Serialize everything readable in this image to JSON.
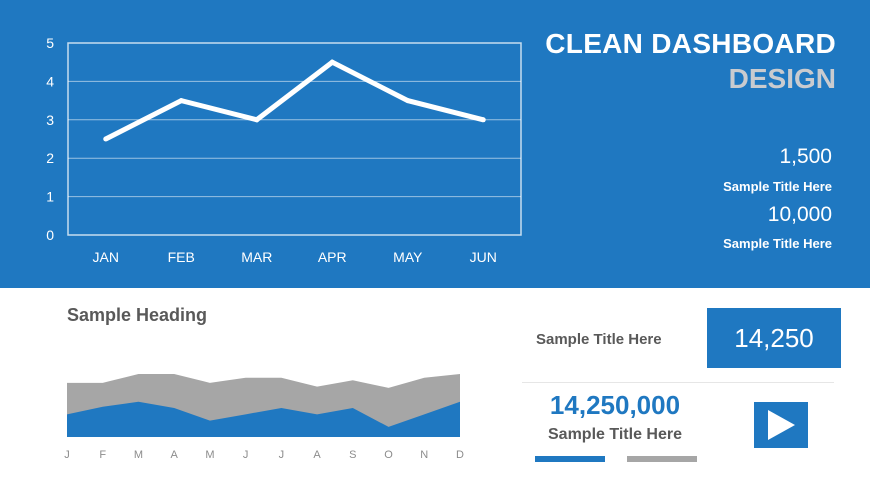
{
  "colors": {
    "accent": "#1f78c1",
    "gray": "#a6a6a6",
    "white": "#ffffff",
    "text_dark": "#595959",
    "title_gray": "#c9cbcf"
  },
  "title": {
    "line1": "CLEAN DASHBOARD",
    "line2": "DESIGN"
  },
  "kpis": [
    {
      "value": "1,500",
      "label": "Sample Title Here"
    },
    {
      "value": "10,000",
      "label": "Sample Title Here"
    }
  ],
  "heading": "Sample Heading",
  "right_panel": {
    "label_top": "Sample Title Here",
    "box_value": "14,250",
    "big_value": "14,250,000",
    "big_label": "Sample Title Here",
    "play_icon": "play-icon"
  },
  "chart_data": [
    {
      "type": "line",
      "categories": [
        "JAN",
        "FEB",
        "MAR",
        "APR",
        "MAY",
        "JUN"
      ],
      "series": [
        {
          "values": [
            2.5,
            3.5,
            3.0,
            4.5,
            3.5,
            3.0
          ]
        }
      ],
      "ylim": [
        0,
        5
      ],
      "yticks": [
        0,
        1,
        2,
        3,
        4,
        5
      ],
      "grid": true
    },
    {
      "type": "area",
      "categories": [
        "J",
        "F",
        "M",
        "A",
        "M",
        "J",
        "J",
        "A",
        "S",
        "O",
        "N",
        "D"
      ],
      "series": [
        {
          "color": "#a6a6a6",
          "values": [
            4.3,
            4.3,
            5.0,
            5.0,
            4.3,
            4.7,
            4.7,
            4.0,
            4.5,
            3.9,
            4.7,
            5.0
          ]
        },
        {
          "color": "#1f78c1",
          "values": [
            1.8,
            2.4,
            2.8,
            2.3,
            1.3,
            1.8,
            2.3,
            1.8,
            2.3,
            0.8,
            1.8,
            2.8
          ]
        }
      ],
      "ylim": [
        0,
        5
      ]
    }
  ]
}
